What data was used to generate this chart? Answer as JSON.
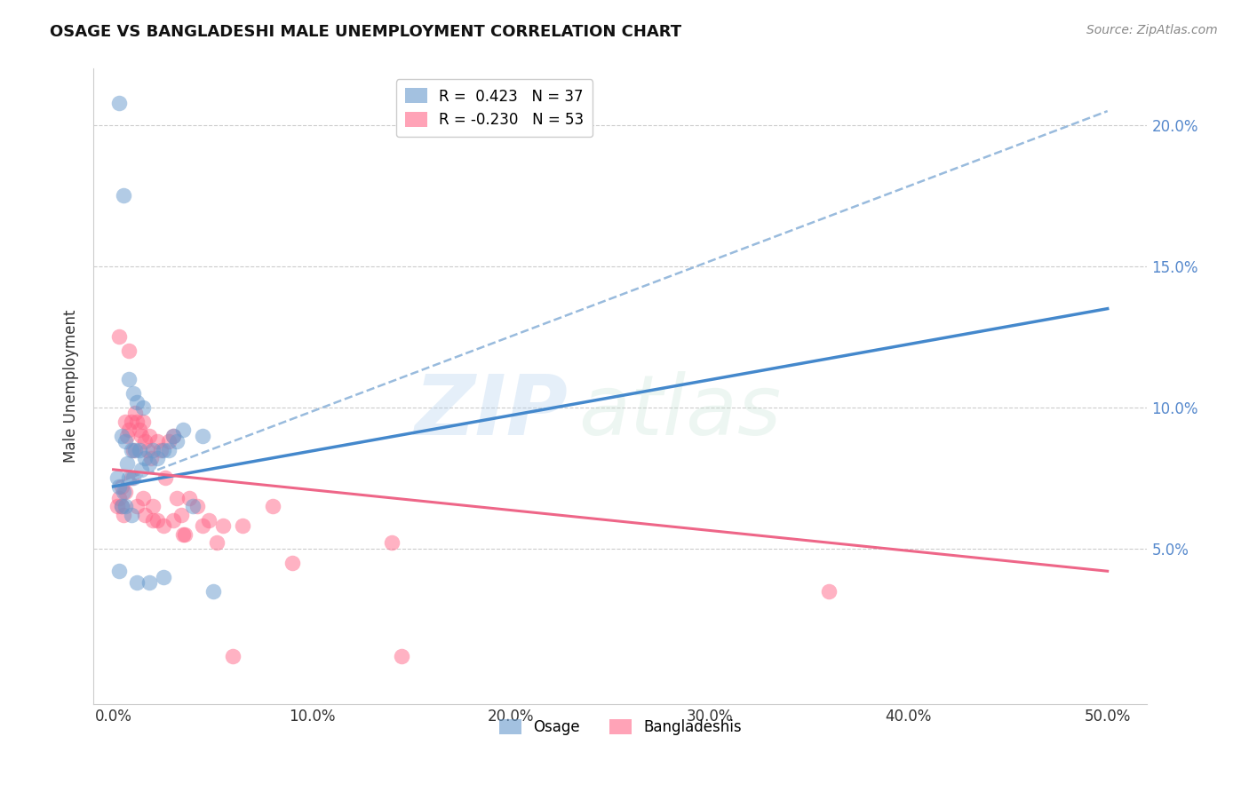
{
  "title": "OSAGE VS BANGLADESHI MALE UNEMPLOYMENT CORRELATION CHART",
  "source": "Source: ZipAtlas.com",
  "ylabel": "Male Unemployment",
  "xlabel_vals": [
    0,
    10,
    20,
    30,
    40,
    50
  ],
  "ylabel_vals": [
    5,
    10,
    15,
    20
  ],
  "xlim": [
    -1,
    52
  ],
  "ylim": [
    -0.5,
    22
  ],
  "osage_color": "#6699CC",
  "bangladeshi_color": "#FF6688",
  "trendline_blue_solid": "#4488CC",
  "trendline_blue_dashed": "#99BBDD",
  "trendline_pink": "#EE6688",
  "osage_R": 0.423,
  "osage_N": 37,
  "bangladeshi_R": -0.23,
  "bangladeshi_N": 53,
  "watermark_zip": "ZIP",
  "watermark_atlas": "atlas",
  "osage_x": [
    0.3,
    0.5,
    0.8,
    1.0,
    1.2,
    1.5,
    0.4,
    0.6,
    0.9,
    1.1,
    1.3,
    1.6,
    1.8,
    2.0,
    2.2,
    2.5,
    2.8,
    3.0,
    3.2,
    3.5,
    0.2,
    0.7,
    1.4,
    0.3,
    0.5,
    0.8,
    1.0,
    4.5,
    0.4,
    0.6,
    0.9,
    4.0,
    0.3,
    1.2,
    5.0,
    1.8,
    2.5
  ],
  "osage_y": [
    20.8,
    17.5,
    11.0,
    10.5,
    10.2,
    10.0,
    9.0,
    8.8,
    8.5,
    8.5,
    8.5,
    8.2,
    8.0,
    8.5,
    8.2,
    8.5,
    8.5,
    9.0,
    8.8,
    9.2,
    7.5,
    8.0,
    7.8,
    7.2,
    7.0,
    7.5,
    7.5,
    9.0,
    6.5,
    6.5,
    6.2,
    6.5,
    4.2,
    3.8,
    3.5,
    3.8,
    4.0
  ],
  "bangladeshi_x": [
    0.2,
    0.3,
    0.4,
    0.5,
    0.6,
    0.7,
    0.8,
    0.9,
    1.0,
    1.1,
    1.2,
    1.3,
    1.4,
    1.5,
    1.6,
    1.7,
    1.8,
    1.9,
    2.0,
    2.2,
    2.4,
    2.6,
    2.8,
    3.0,
    3.2,
    3.4,
    3.8,
    4.2,
    4.8,
    5.5,
    6.5,
    8.0,
    0.4,
    0.6,
    0.9,
    1.2,
    1.6,
    2.0,
    2.5,
    3.0,
    3.6,
    4.5,
    5.2,
    0.3,
    0.8,
    1.5,
    2.2,
    3.5,
    14.0,
    36.0,
    14.5,
    9.0,
    6.0
  ],
  "bangladeshi_y": [
    6.5,
    6.8,
    6.5,
    6.2,
    9.5,
    9.0,
    9.2,
    9.5,
    8.5,
    9.8,
    9.5,
    9.2,
    9.0,
    9.5,
    8.8,
    8.5,
    9.0,
    8.2,
    6.5,
    8.8,
    8.5,
    7.5,
    8.8,
    9.0,
    6.8,
    6.2,
    6.8,
    6.5,
    6.0,
    5.8,
    5.8,
    6.5,
    7.2,
    7.0,
    7.5,
    6.5,
    6.2,
    6.0,
    5.8,
    6.0,
    5.5,
    5.8,
    5.2,
    12.5,
    12.0,
    6.8,
    6.0,
    5.5,
    5.2,
    3.5,
    1.2,
    4.5,
    1.2
  ],
  "blue_line_x0": 0,
  "blue_line_y0": 7.2,
  "blue_line_x1": 50,
  "blue_line_y1": 13.5,
  "blue_dash_x0": 0,
  "blue_dash_y0": 7.2,
  "blue_dash_x1": 50,
  "blue_dash_y1": 20.5,
  "pink_line_x0": 0,
  "pink_line_y0": 7.8,
  "pink_line_x1": 50,
  "pink_line_y1": 4.2
}
